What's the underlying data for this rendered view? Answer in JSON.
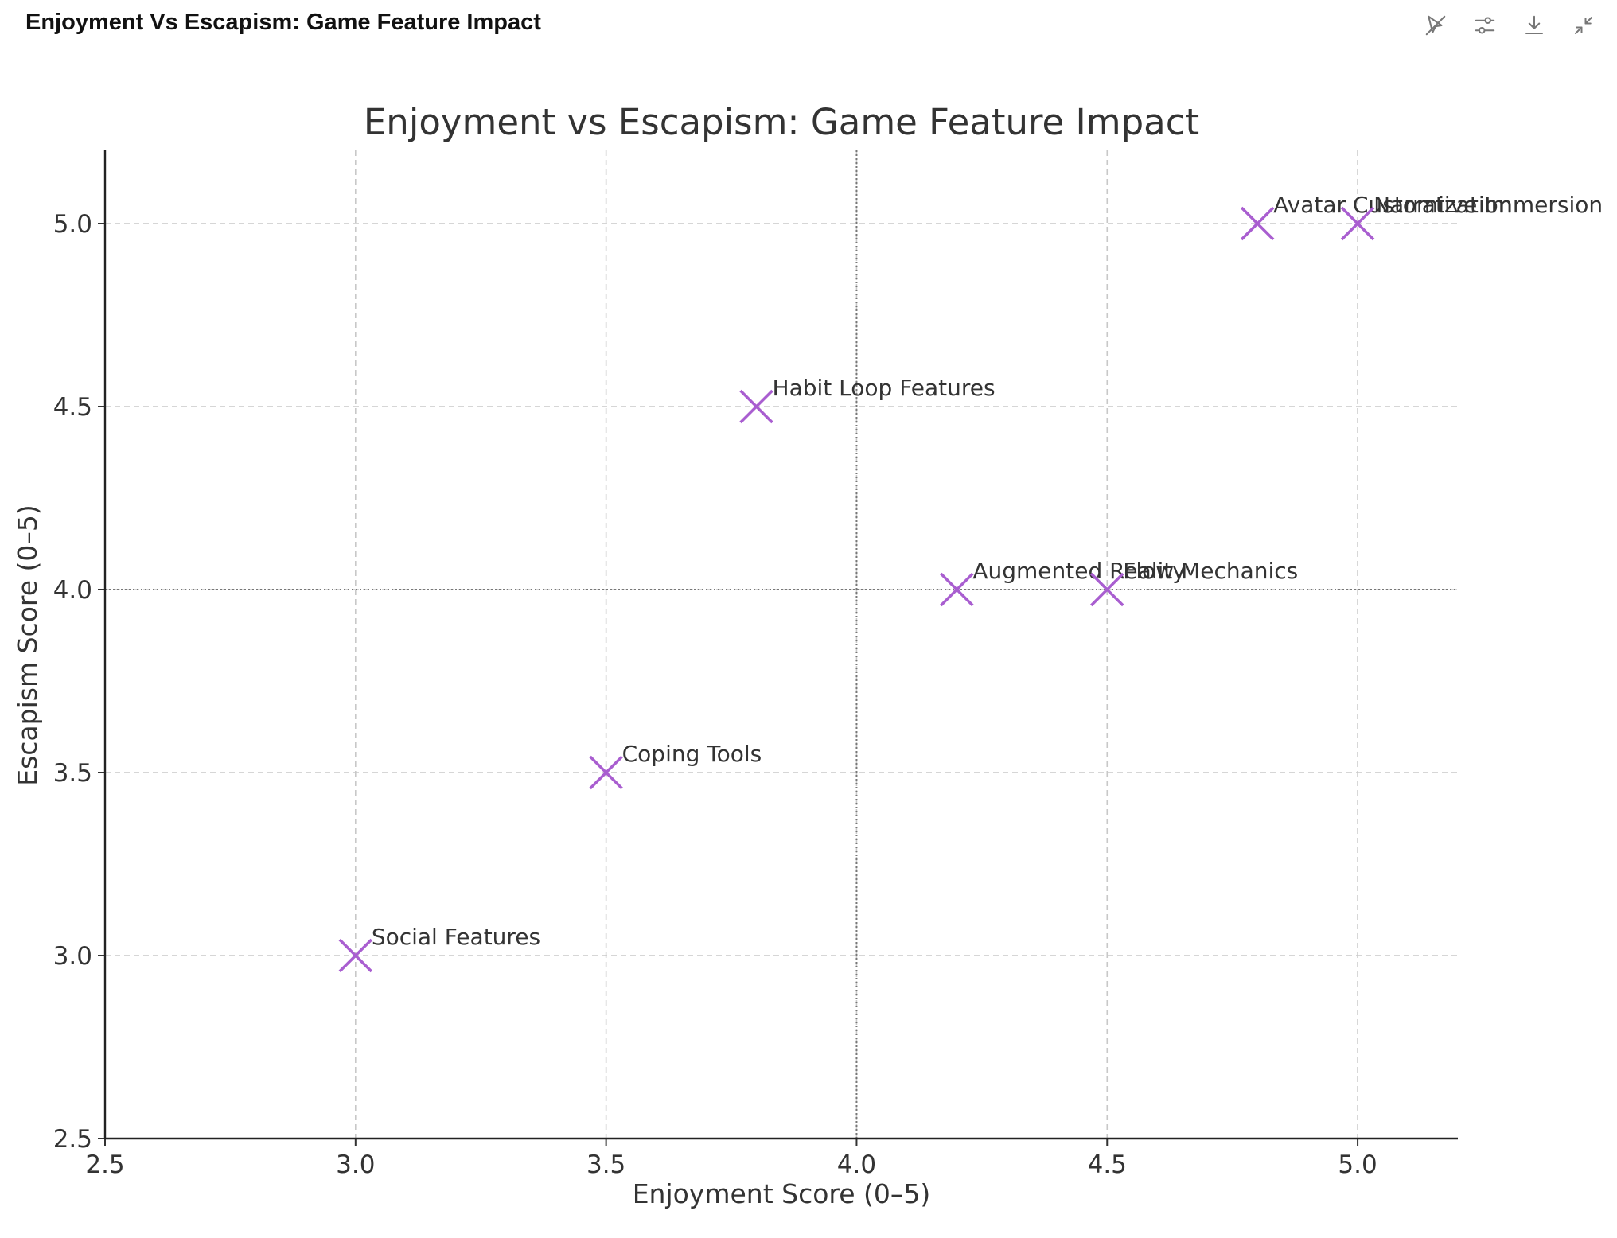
{
  "header": {
    "title": "Enjoyment Vs Escapism: Game Feature Impact",
    "icons": [
      "interactive-pointer-icon",
      "filter-settings-icon",
      "download-icon",
      "collapse-icon"
    ]
  },
  "chart_data": {
    "type": "scatter",
    "title": "Enjoyment vs Escapism: Game Feature Impact",
    "xlabel": "Enjoyment Score (0–5)",
    "ylabel": "Escapism Score (0–5)",
    "xlim": [
      2.5,
      5.2
    ],
    "ylim": [
      2.5,
      5.2
    ],
    "xticks": [
      "2.5",
      "3.0",
      "3.5",
      "4.0",
      "4.5",
      "5.0"
    ],
    "yticks": [
      "2.5",
      "3.0",
      "3.5",
      "4.0",
      "4.5",
      "5.0"
    ],
    "grid": true,
    "reference_lines": {
      "x": 4.0,
      "y": 4.0
    },
    "marker": "x",
    "color": "#a95ed0",
    "points": [
      {
        "label": "Social Features",
        "x": 3.0,
        "y": 3.0
      },
      {
        "label": "Coping Tools",
        "x": 3.5,
        "y": 3.5
      },
      {
        "label": "Habit Loop Features",
        "x": 3.8,
        "y": 4.5
      },
      {
        "label": "Augmented Reality",
        "x": 4.2,
        "y": 4.0
      },
      {
        "label": "Flow Mechanics",
        "x": 4.5,
        "y": 4.0
      },
      {
        "label": "Avatar Customization",
        "x": 4.8,
        "y": 5.0
      },
      {
        "label": "Narrative Immersion",
        "x": 5.0,
        "y": 5.0
      }
    ]
  }
}
